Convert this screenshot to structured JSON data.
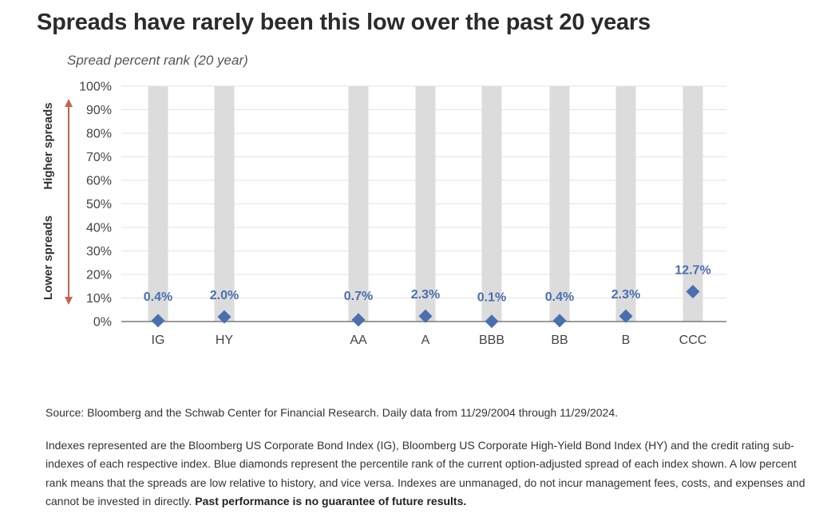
{
  "title": "Spreads have rarely been this low over the past 20 years",
  "chart_data": {
    "type": "scatter",
    "ylabel": "Spread percent rank (20 year)",
    "categories": [
      "IG",
      "HY",
      "AA",
      "A",
      "BBB",
      "BB",
      "B",
      "CCC"
    ],
    "values": [
      0.4,
      2.0,
      0.7,
      2.3,
      0.1,
      0.4,
      2.3,
      12.7
    ],
    "data_labels": [
      "0.4%",
      "2.0%",
      "0.7%",
      "2.3%",
      "0.1%",
      "0.4%",
      "2.3%",
      "12.7%"
    ],
    "ylim": [
      0,
      100
    ],
    "yticks": [
      "0%",
      "10%",
      "20%",
      "30%",
      "40%",
      "50%",
      "60%",
      "70%",
      "80%",
      "90%",
      "100%"
    ],
    "grid": true,
    "marker": "diamond",
    "annotations": {
      "upper": "Higher spreads",
      "lower": "Lower spreads"
    }
  },
  "colors": {
    "marker": "#4a6fae",
    "label": "#4a6fae",
    "bar": "#dcdcdc",
    "arrow": "#c7634f",
    "grid": "#e3e3e3",
    "axis": "#7a7a7a"
  },
  "footnotes": {
    "source": "Source: Bloomberg and the Schwab Center for Financial Research. Daily data from 11/29/2004 through 11/29/2024.",
    "description": "Indexes represented are the Bloomberg US Corporate Bond Index (IG), Bloomberg US Corporate High-Yield Bond Index (HY) and the credit rating sub-indexes of each respective index. Blue diamonds represent the percentile rank of the current option-adjusted spread of each index shown. A low percent rank means that the spreads are low relative to history, and vice versa. Indexes are unmanaged, do not incur management fees, costs, and expenses and cannot be invested in directly.",
    "disclaimer": "Past performance is no guarantee of future results."
  }
}
